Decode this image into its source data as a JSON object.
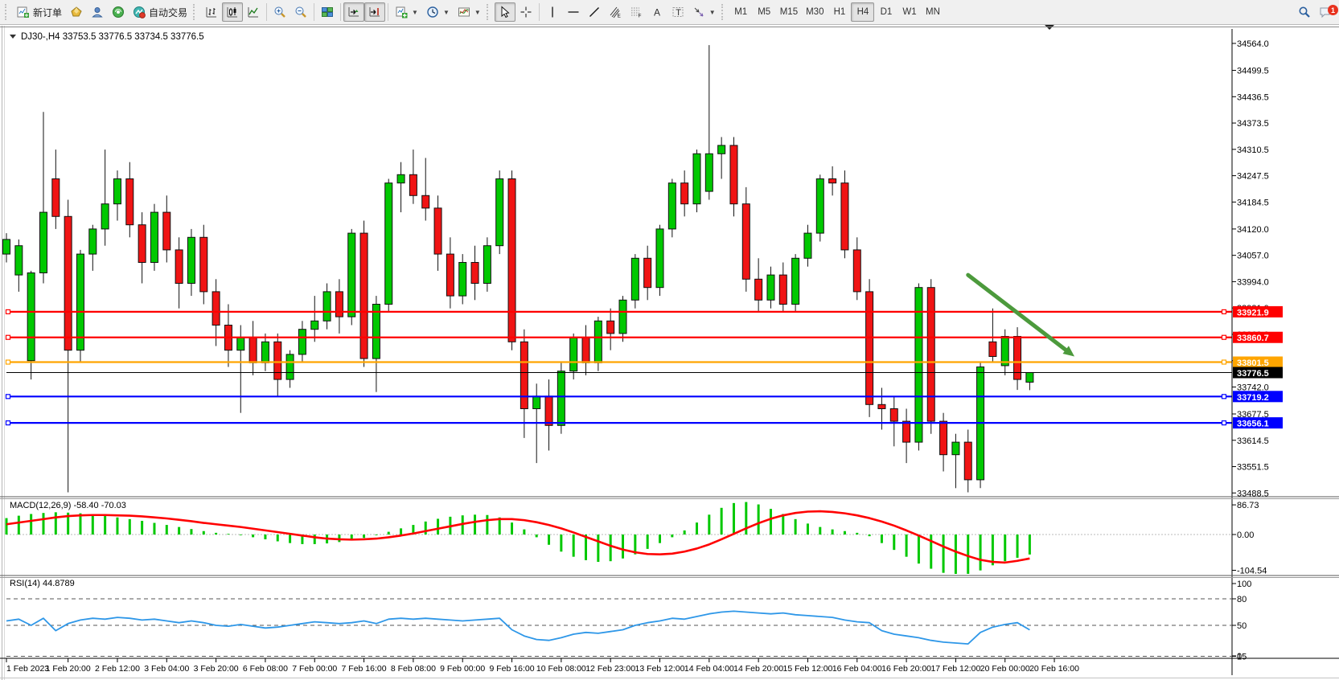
{
  "toolbar": {
    "new_order_label": "新订单",
    "auto_trading_label": "自动交易",
    "timeframes": [
      "M1",
      "M5",
      "M15",
      "M30",
      "H1",
      "H4",
      "D1",
      "W1",
      "MN"
    ],
    "active_timeframe": "H4",
    "notification_badge": "1"
  },
  "chart": {
    "symbol": "DJ30-",
    "period": "H4",
    "title_line": "DJ30-,H4  33753.5 33776.5 33734.5 33776.5",
    "ohlc_text": "33753.5 33776.5 33734.5 33776.5"
  },
  "colors": {
    "bull": "#00C800",
    "bear": "#F01414",
    "macd_histogram": "#00C800",
    "macd_signal": "#FF0000",
    "rsi_line": "#2E97E8",
    "resistance_line": "#FF0000",
    "pivot_line": "#FFA500",
    "support_line": "#0000FF",
    "current_price_label": "#000000",
    "arrow_annotation": "#4C9A3C"
  },
  "price_axis": {
    "ticks": [
      34564.0,
      34499.5,
      34436.5,
      34373.5,
      34310.5,
      34247.5,
      34184.5,
      34120.0,
      34057.0,
      33994.0,
      33931.0,
      33868.0,
      33805.0,
      33742.0,
      33677.5,
      33614.5,
      33551.5,
      33488.5
    ]
  },
  "indicators": {
    "macd": {
      "label": "MACD(12,26,9) -58.40 -70.03",
      "name": "MACD",
      "params": "12,26,9",
      "value": "-58.40",
      "signal_value": "-70.03",
      "axis_labels": [
        "86.73",
        "0.00",
        "-104.54"
      ]
    },
    "rsi": {
      "label": "RSI(14) 44.8789",
      "name": "RSI",
      "params": "14",
      "value": "44.8789",
      "axis_labels": [
        "100",
        "80",
        "50",
        "15",
        "0"
      ],
      "levels": [
        80,
        50,
        15
      ]
    }
  },
  "chart_data": {
    "type": "candlestick",
    "symbol": "DJ30-",
    "timeframe": "H4",
    "title": "DJ30-,H4  33753.5 33776.5 33734.5 33776.5",
    "ylim": [
      33475,
      34580
    ],
    "grid": false,
    "candles": [
      [
        34060,
        34110,
        34040,
        34095
      ],
      [
        34010,
        34095,
        33970,
        34080
      ],
      [
        33805,
        34020,
        33760,
        34015
      ],
      [
        34015,
        34400,
        33990,
        34160
      ],
      [
        34240,
        34310,
        34120,
        34150
      ],
      [
        34150,
        34190,
        33490,
        33830
      ],
      [
        33830,
        34070,
        33800,
        34060
      ],
      [
        34060,
        34130,
        34020,
        34120
      ],
      [
        34120,
        34310,
        34080,
        34180
      ],
      [
        34180,
        34260,
        34140,
        34240
      ],
      [
        34240,
        34280,
        34100,
        34130
      ],
      [
        34130,
        34160,
        33990,
        34040
      ],
      [
        34040,
        34180,
        34020,
        34160
      ],
      [
        34160,
        34200,
        34040,
        34070
      ],
      [
        34070,
        34100,
        33930,
        33990
      ],
      [
        33990,
        34120,
        33960,
        34100
      ],
      [
        34100,
        34130,
        33940,
        33970
      ],
      [
        33970,
        34000,
        33840,
        33890
      ],
      [
        33890,
        33940,
        33790,
        33830
      ],
      [
        33830,
        33890,
        33680,
        33860
      ],
      [
        33860,
        33900,
        33770,
        33800
      ],
      [
        33800,
        33870,
        33780,
        33850
      ],
      [
        33850,
        33870,
        33720,
        33760
      ],
      [
        33760,
        33830,
        33740,
        33820
      ],
      [
        33820,
        33900,
        33800,
        33880
      ],
      [
        33880,
        33960,
        33850,
        33900
      ],
      [
        33900,
        33990,
        33880,
        33970
      ],
      [
        33970,
        34000,
        33870,
        33910
      ],
      [
        33910,
        34120,
        33890,
        34110
      ],
      [
        34110,
        34140,
        33790,
        33810
      ],
      [
        33810,
        33960,
        33730,
        33940
      ],
      [
        33940,
        34240,
        33920,
        34230
      ],
      [
        34230,
        34280,
        34160,
        34250
      ],
      [
        34250,
        34310,
        34180,
        34200
      ],
      [
        34200,
        34290,
        34140,
        34170
      ],
      [
        34170,
        34200,
        34020,
        34060
      ],
      [
        34060,
        34100,
        33930,
        33960
      ],
      [
        33960,
        34060,
        33940,
        34040
      ],
      [
        34040,
        34080,
        33950,
        33990
      ],
      [
        33990,
        34100,
        33970,
        34080
      ],
      [
        34080,
        34260,
        34060,
        34240
      ],
      [
        34240,
        34260,
        33830,
        33850
      ],
      [
        33850,
        33880,
        33620,
        33690
      ],
      [
        33690,
        33750,
        33560,
        33720
      ],
      [
        33720,
        33760,
        33590,
        33650
      ],
      [
        33650,
        33800,
        33630,
        33780
      ],
      [
        33780,
        33870,
        33760,
        33860
      ],
      [
        33860,
        33890,
        33770,
        33800
      ],
      [
        33800,
        33910,
        33780,
        33900
      ],
      [
        33900,
        33930,
        33830,
        33870
      ],
      [
        33870,
        33960,
        33850,
        33950
      ],
      [
        33950,
        34060,
        33930,
        34050
      ],
      [
        34050,
        34080,
        33950,
        33980
      ],
      [
        33980,
        34130,
        33960,
        34120
      ],
      [
        34120,
        34240,
        34100,
        34230
      ],
      [
        34230,
        34260,
        34150,
        34180
      ],
      [
        34180,
        34310,
        34160,
        34300
      ],
      [
        34210,
        34560,
        34190,
        34300
      ],
      [
        34300,
        34340,
        34240,
        34320
      ],
      [
        34320,
        34340,
        34150,
        34180
      ],
      [
        34180,
        34220,
        33970,
        34000
      ],
      [
        34000,
        34050,
        33920,
        33950
      ],
      [
        33950,
        34030,
        33930,
        34010
      ],
      [
        34010,
        34040,
        33920,
        33940
      ],
      [
        33940,
        34060,
        33920,
        34050
      ],
      [
        34050,
        34130,
        34030,
        34110
      ],
      [
        34110,
        34250,
        34090,
        34240
      ],
      [
        34240,
        34270,
        34200,
        34230
      ],
      [
        34230,
        34260,
        34050,
        34070
      ],
      [
        34070,
        34100,
        33950,
        33970
      ],
      [
        33970,
        34000,
        33670,
        33700
      ],
      [
        33700,
        33740,
        33640,
        33690
      ],
      [
        33690,
        33720,
        33600,
        33660
      ],
      [
        33660,
        33690,
        33560,
        33610
      ],
      [
        33610,
        33990,
        33590,
        33980
      ],
      [
        33980,
        34000,
        33630,
        33660
      ],
      [
        33660,
        33680,
        33540,
        33580
      ],
      [
        33580,
        33630,
        33500,
        33610
      ],
      [
        33610,
        33640,
        33490,
        33520
      ],
      [
        33520,
        33800,
        33500,
        33790
      ],
      [
        33850,
        33930,
        33800,
        33815
      ],
      [
        33793,
        33880,
        33770,
        33863
      ],
      [
        33863,
        33885,
        33735,
        33760
      ],
      [
        33753.5,
        33776.5,
        33734.5,
        33776.5
      ]
    ],
    "hlines": [
      {
        "price": 33921.9,
        "color": "#FF0000",
        "label": "33921.9",
        "role": "resistance"
      },
      {
        "price": 33860.7,
        "color": "#FF0000",
        "label": "33860.7",
        "role": "resistance"
      },
      {
        "price": 33801.5,
        "color": "#FFA500",
        "label": "33801.5",
        "role": "pivot"
      },
      {
        "price": 33719.2,
        "color": "#0000FF",
        "label": "33719.2",
        "role": "support"
      },
      {
        "price": 33656.1,
        "color": "#0000FF",
        "label": "33656.1",
        "role": "support"
      }
    ],
    "current_price": {
      "value": 33776.5,
      "label": "33776.5"
    },
    "macd_histogram": [
      48,
      55,
      60,
      63,
      65,
      64,
      62,
      58,
      54,
      50,
      45,
      40,
      34,
      28,
      22,
      16,
      10,
      5,
      2,
      -2,
      -8,
      -14,
      -20,
      -25,
      -28,
      -28,
      -26,
      -22,
      -16,
      -10,
      -2,
      8,
      18,
      28,
      38,
      46,
      52,
      56,
      58,
      57,
      50,
      35,
      15,
      -8,
      -30,
      -50,
      -65,
      -75,
      -80,
      -78,
      -70,
      -58,
      -42,
      -25,
      -8,
      12,
      35,
      58,
      78,
      92,
      95,
      88,
      75,
      60,
      45,
      32,
      22,
      15,
      10,
      5,
      -5,
      -25,
      -45,
      -65,
      -85,
      -100,
      -112,
      -118,
      -115,
      -105,
      -90,
      -78,
      -68,
      -58.4
    ],
    "macd_signal": [
      30,
      35,
      40,
      45,
      50,
      54,
      56,
      57,
      57,
      56,
      55,
      53,
      50,
      47,
      43,
      39,
      34,
      30,
      26,
      22,
      17,
      12,
      7,
      2,
      -3,
      -8,
      -12,
      -14,
      -15,
      -14,
      -12,
      -8,
      -3,
      3,
      10,
      17,
      24,
      31,
      37,
      42,
      45,
      45,
      42,
      36,
      28,
      18,
      6,
      -7,
      -20,
      -33,
      -44,
      -52,
      -57,
      -58,
      -56,
      -50,
      -41,
      -29,
      -14,
      2,
      18,
      33,
      46,
      56,
      63,
      67,
      68,
      66,
      62,
      56,
      48,
      38,
      26,
      12,
      -3,
      -19,
      -35,
      -50,
      -63,
      -74,
      -80,
      -82,
      -77,
      -70
    ],
    "macd_range": [
      86.73,
      -104.54
    ],
    "rsi_values": [
      55,
      57,
      50,
      58,
      44,
      52,
      56,
      58,
      57,
      59,
      58,
      56,
      57,
      55,
      53,
      55,
      53,
      50,
      49,
      51,
      49,
      47,
      48,
      50,
      52,
      54,
      53,
      52,
      53,
      55,
      52,
      57,
      58,
      57,
      58,
      57,
      56,
      55,
      56,
      57,
      58,
      45,
      38,
      34,
      33,
      36,
      40,
      42,
      41,
      43,
      45,
      50,
      53,
      55,
      58,
      57,
      60,
      63,
      65,
      66,
      65,
      64,
      63,
      64,
      62,
      61,
      60,
      59,
      56,
      54,
      53,
      44,
      40,
      38,
      36,
      33,
      31,
      30,
      29,
      42,
      48,
      51,
      53,
      44.88
    ],
    "rsi_range": [
      0,
      100
    ],
    "time_labels": [
      "1 Feb 2023",
      "1 Feb 20:00",
      "2 Feb 12:00",
      "3 Feb 04:00",
      "3 Feb 20:00",
      "6 Feb 08:00",
      "7 Feb 00:00",
      "7 Feb 16:00",
      "8 Feb 08:00",
      "9 Feb 00:00",
      "9 Feb 16:00",
      "10 Feb 08:00",
      "12 Feb 23:00",
      "13 Feb 12:00",
      "14 Feb 04:00",
      "14 Feb 20:00",
      "15 Feb 12:00",
      "16 Feb 04:00",
      "16 Feb 20:00",
      "17 Feb 12:00",
      "20 Feb 00:00",
      "20 Feb 16:00"
    ],
    "time_label_bar_indices": [
      0,
      5,
      9,
      13,
      17,
      21,
      25,
      29,
      33,
      37,
      41,
      45,
      49,
      53,
      57,
      61,
      65,
      69,
      73,
      77,
      81,
      85
    ],
    "annotations": [
      {
        "type": "arrow",
        "color": "#4C9A3C",
        "from_bar": 78,
        "from_price": 34010,
        "to_bar": 85,
        "to_price": 33815,
        "direction": "down-right"
      }
    ]
  }
}
